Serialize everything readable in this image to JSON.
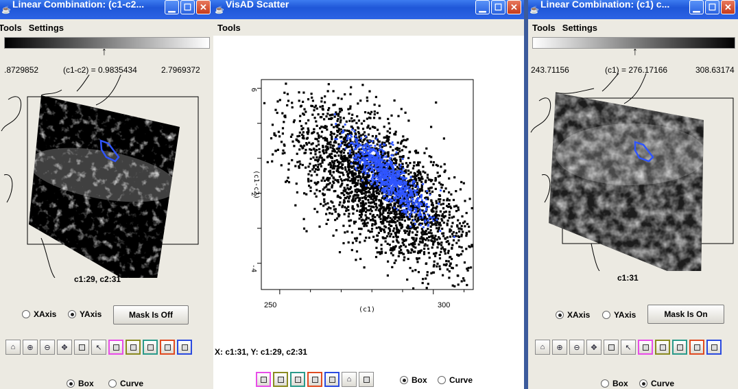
{
  "colors": {
    "title_blue": "#2c63e4",
    "tool_colors": [
      "#e84ce8",
      "#8a8a20",
      "#2a9a8a",
      "#e04a20",
      "#2a4ae0"
    ],
    "mask_blue": "#2f55ff"
  },
  "left": {
    "title": "Linear Combination: (c1-c2...",
    "menu": [
      "Tools",
      "Settings"
    ],
    "range_min": ".8729852",
    "range_mid": "(c1-c2) = 0.9835434",
    "range_max": "2.7969372",
    "caption": "c1:29, c2:31",
    "radio_x": "XAxis",
    "radio_y": "YAxis",
    "x_selected": false,
    "y_selected": true,
    "mask_label": "Mask Is Off",
    "radio_box": "Box",
    "radio_curve": "Curve",
    "box_selected": true
  },
  "middle": {
    "title": "VisAD Scatter",
    "menu": [
      "Tools"
    ],
    "coords": "X: c1:31,  Y: c1:29, c2:31",
    "radio_box": "Box",
    "radio_curve": "Curve",
    "box_selected": true,
    "chart_data": {
      "type": "scatter",
      "xlabel": "(c1)",
      "ylabel": "(c1-c2)",
      "x_ticks": [
        "250",
        "300"
      ],
      "y_ticks": [
        "6",
        "2",
        "-4"
      ],
      "xlim": [
        244,
        313
      ],
      "ylim": [
        -5.5,
        6.5
      ],
      "series": [
        {
          "color": "#000000",
          "center": [
            282,
            0.5
          ],
          "spread": "large diagonal cloud"
        },
        {
          "color": "#2f55ff",
          "center": [
            285,
            1.0
          ],
          "spread": "inner selected subset"
        }
      ]
    }
  },
  "right": {
    "title": "Linear Combination: (c1)  c...",
    "menu": [
      "Tools",
      "Settings"
    ],
    "range_min": "243.71156",
    "range_mid": "(c1) = 276.17166",
    "range_max": "308.63174",
    "caption": "c1:31",
    "radio_x": "XAxis",
    "radio_y": "YAxis",
    "x_selected": true,
    "y_selected": false,
    "mask_label": "Mask Is On",
    "radio_box": "Box",
    "radio_curve": "Curve",
    "box_selected": false
  }
}
